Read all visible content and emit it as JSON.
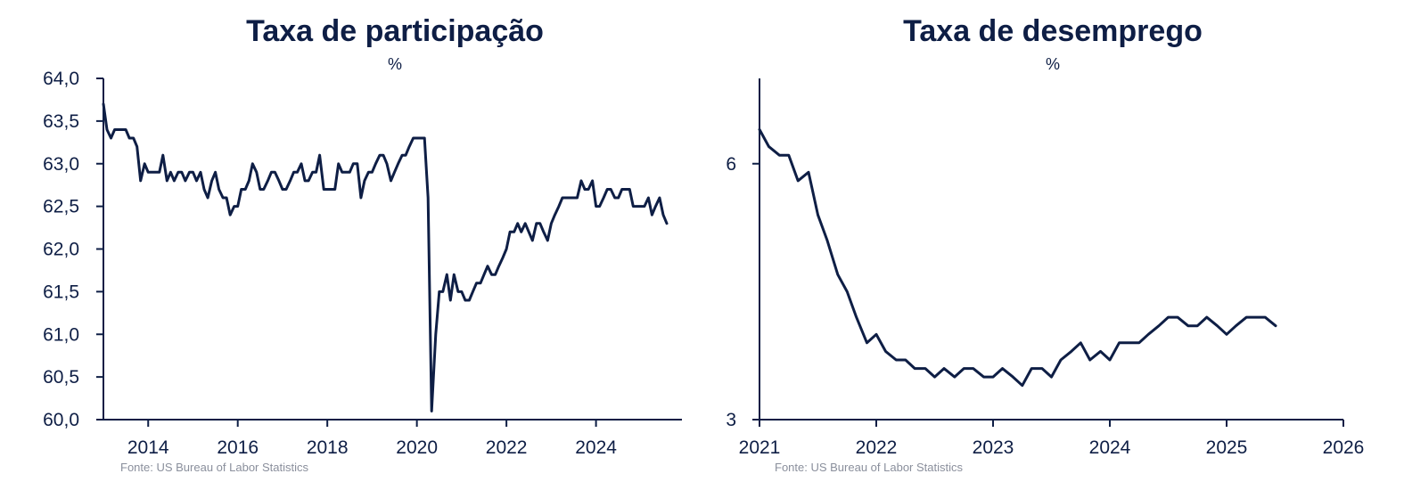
{
  "colors": {
    "navy": "#0e1e45",
    "source": "#8a8f9c"
  },
  "chart_data": [
    {
      "type": "line",
      "title": "Taxa de participação",
      "unit_label": "%",
      "source": "Fonte: US Bureau of Labor Statistics",
      "xlim": [
        2013.0,
        2025.7
      ],
      "ylim": [
        60.0,
        64.0
      ],
      "x_ticks": [
        2014,
        2016,
        2018,
        2020,
        2022,
        2024
      ],
      "y_ticks": [
        {
          "value": 60.0,
          "label": "60,0"
        },
        {
          "value": 60.5,
          "label": "60,5"
        },
        {
          "value": 61.0,
          "label": "61,0"
        },
        {
          "value": 61.5,
          "label": "61,5"
        },
        {
          "value": 62.0,
          "label": "62,0"
        },
        {
          "value": 62.5,
          "label": "62,5"
        },
        {
          "value": 63.0,
          "label": "63,0"
        },
        {
          "value": 63.5,
          "label": "63,5"
        },
        {
          "value": 64.0,
          "label": "64,0"
        }
      ],
      "series": [
        {
          "points": [
            [
              2013.0,
              63.7
            ],
            [
              2013.08,
              63.4
            ],
            [
              2013.17,
              63.3
            ],
            [
              2013.25,
              63.4
            ],
            [
              2013.33,
              63.4
            ],
            [
              2013.42,
              63.4
            ],
            [
              2013.5,
              63.4
            ],
            [
              2013.58,
              63.3
            ],
            [
              2013.67,
              63.3
            ],
            [
              2013.75,
              63.2
            ],
            [
              2013.83,
              62.8
            ],
            [
              2013.92,
              63.0
            ],
            [
              2014.0,
              62.9
            ],
            [
              2014.08,
              62.9
            ],
            [
              2014.17,
              62.9
            ],
            [
              2014.25,
              62.9
            ],
            [
              2014.33,
              63.1
            ],
            [
              2014.42,
              62.8
            ],
            [
              2014.5,
              62.9
            ],
            [
              2014.58,
              62.8
            ],
            [
              2014.67,
              62.9
            ],
            [
              2014.75,
              62.9
            ],
            [
              2014.83,
              62.8
            ],
            [
              2014.92,
              62.9
            ],
            [
              2015.0,
              62.9
            ],
            [
              2015.08,
              62.8
            ],
            [
              2015.17,
              62.9
            ],
            [
              2015.25,
              62.7
            ],
            [
              2015.33,
              62.6
            ],
            [
              2015.42,
              62.8
            ],
            [
              2015.5,
              62.9
            ],
            [
              2015.58,
              62.7
            ],
            [
              2015.67,
              62.6
            ],
            [
              2015.75,
              62.6
            ],
            [
              2015.83,
              62.4
            ],
            [
              2015.92,
              62.5
            ],
            [
              2016.0,
              62.5
            ],
            [
              2016.08,
              62.7
            ],
            [
              2016.17,
              62.7
            ],
            [
              2016.25,
              62.8
            ],
            [
              2016.33,
              63.0
            ],
            [
              2016.42,
              62.9
            ],
            [
              2016.5,
              62.7
            ],
            [
              2016.58,
              62.7
            ],
            [
              2016.67,
              62.8
            ],
            [
              2016.75,
              62.9
            ],
            [
              2016.83,
              62.9
            ],
            [
              2016.92,
              62.8
            ],
            [
              2017.0,
              62.7
            ],
            [
              2017.08,
              62.7
            ],
            [
              2017.17,
              62.8
            ],
            [
              2017.25,
              62.9
            ],
            [
              2017.33,
              62.9
            ],
            [
              2017.42,
              63.0
            ],
            [
              2017.5,
              62.8
            ],
            [
              2017.58,
              62.8
            ],
            [
              2017.67,
              62.9
            ],
            [
              2017.75,
              62.9
            ],
            [
              2017.83,
              63.1
            ],
            [
              2017.92,
              62.7
            ],
            [
              2018.0,
              62.7
            ],
            [
              2018.08,
              62.7
            ],
            [
              2018.17,
              62.7
            ],
            [
              2018.25,
              63.0
            ],
            [
              2018.33,
              62.9
            ],
            [
              2018.42,
              62.9
            ],
            [
              2018.5,
              62.9
            ],
            [
              2018.58,
              63.0
            ],
            [
              2018.67,
              63.0
            ],
            [
              2018.75,
              62.6
            ],
            [
              2018.83,
              62.8
            ],
            [
              2018.92,
              62.9
            ],
            [
              2019.0,
              62.9
            ],
            [
              2019.08,
              63.0
            ],
            [
              2019.17,
              63.1
            ],
            [
              2019.25,
              63.1
            ],
            [
              2019.33,
              63.0
            ],
            [
              2019.42,
              62.8
            ],
            [
              2019.5,
              62.9
            ],
            [
              2019.58,
              63.0
            ],
            [
              2019.67,
              63.1
            ],
            [
              2019.75,
              63.1
            ],
            [
              2019.83,
              63.2
            ],
            [
              2019.92,
              63.3
            ],
            [
              2020.0,
              63.3
            ],
            [
              2020.08,
              63.3
            ],
            [
              2020.17,
              63.3
            ],
            [
              2020.25,
              62.6
            ],
            [
              2020.33,
              60.1
            ],
            [
              2020.42,
              61.0
            ],
            [
              2020.5,
              61.5
            ],
            [
              2020.58,
              61.5
            ],
            [
              2020.67,
              61.7
            ],
            [
              2020.75,
              61.4
            ],
            [
              2020.83,
              61.7
            ],
            [
              2020.92,
              61.5
            ],
            [
              2021.0,
              61.5
            ],
            [
              2021.08,
              61.4
            ],
            [
              2021.17,
              61.4
            ],
            [
              2021.25,
              61.5
            ],
            [
              2021.33,
              61.6
            ],
            [
              2021.42,
              61.6
            ],
            [
              2021.5,
              61.7
            ],
            [
              2021.58,
              61.8
            ],
            [
              2021.67,
              61.7
            ],
            [
              2021.75,
              61.7
            ],
            [
              2021.83,
              61.8
            ],
            [
              2021.92,
              61.9
            ],
            [
              2022.0,
              62.0
            ],
            [
              2022.08,
              62.2
            ],
            [
              2022.17,
              62.2
            ],
            [
              2022.25,
              62.3
            ],
            [
              2022.33,
              62.2
            ],
            [
              2022.42,
              62.3
            ],
            [
              2022.5,
              62.2
            ],
            [
              2022.58,
              62.1
            ],
            [
              2022.67,
              62.3
            ],
            [
              2022.75,
              62.3
            ],
            [
              2022.83,
              62.2
            ],
            [
              2022.92,
              62.1
            ],
            [
              2023.0,
              62.3
            ],
            [
              2023.08,
              62.4
            ],
            [
              2023.17,
              62.5
            ],
            [
              2023.25,
              62.6
            ],
            [
              2023.33,
              62.6
            ],
            [
              2023.42,
              62.6
            ],
            [
              2023.5,
              62.6
            ],
            [
              2023.58,
              62.6
            ],
            [
              2023.67,
              62.8
            ],
            [
              2023.75,
              62.7
            ],
            [
              2023.83,
              62.7
            ],
            [
              2023.92,
              62.8
            ],
            [
              2024.0,
              62.5
            ],
            [
              2024.08,
              62.5
            ],
            [
              2024.17,
              62.6
            ],
            [
              2024.25,
              62.7
            ],
            [
              2024.33,
              62.7
            ],
            [
              2024.42,
              62.6
            ],
            [
              2024.5,
              62.6
            ],
            [
              2024.58,
              62.7
            ],
            [
              2024.67,
              62.7
            ],
            [
              2024.75,
              62.7
            ],
            [
              2024.83,
              62.5
            ],
            [
              2024.92,
              62.5
            ],
            [
              2025.0,
              62.5
            ],
            [
              2025.08,
              62.5
            ],
            [
              2025.17,
              62.6
            ],
            [
              2025.25,
              62.4
            ],
            [
              2025.33,
              62.5
            ],
            [
              2025.42,
              62.6
            ],
            [
              2025.5,
              62.4
            ],
            [
              2025.58,
              62.3
            ]
          ]
        }
      ]
    },
    {
      "type": "line",
      "title": "Taxa de desemprego",
      "unit_label": "%",
      "source": "Fonte: US Bureau of Labor Statistics",
      "xlim": [
        2021.0,
        2026.0
      ],
      "ylim": [
        3.0,
        7.0
      ],
      "x_ticks": [
        2021,
        2022,
        2023,
        2024,
        2025,
        2026
      ],
      "y_ticks": [
        {
          "value": 3,
          "label": "3"
        },
        {
          "value": 6,
          "label": "6"
        }
      ],
      "series": [
        {
          "points": [
            [
              2021.0,
              6.4
            ],
            [
              2021.08,
              6.2
            ],
            [
              2021.17,
              6.1
            ],
            [
              2021.25,
              6.1
            ],
            [
              2021.33,
              5.8
            ],
            [
              2021.42,
              5.9
            ],
            [
              2021.5,
              5.4
            ],
            [
              2021.58,
              5.1
            ],
            [
              2021.67,
              4.7
            ],
            [
              2021.75,
              4.5
            ],
            [
              2021.83,
              4.2
            ],
            [
              2021.92,
              3.9
            ],
            [
              2022.0,
              4.0
            ],
            [
              2022.08,
              3.8
            ],
            [
              2022.17,
              3.7
            ],
            [
              2022.25,
              3.7
            ],
            [
              2022.33,
              3.6
            ],
            [
              2022.42,
              3.6
            ],
            [
              2022.5,
              3.5
            ],
            [
              2022.58,
              3.6
            ],
            [
              2022.67,
              3.5
            ],
            [
              2022.75,
              3.6
            ],
            [
              2022.83,
              3.6
            ],
            [
              2022.92,
              3.5
            ],
            [
              2023.0,
              3.5
            ],
            [
              2023.08,
              3.6
            ],
            [
              2023.17,
              3.5
            ],
            [
              2023.25,
              3.4
            ],
            [
              2023.33,
              3.6
            ],
            [
              2023.42,
              3.6
            ],
            [
              2023.5,
              3.5
            ],
            [
              2023.58,
              3.7
            ],
            [
              2023.67,
              3.8
            ],
            [
              2023.75,
              3.9
            ],
            [
              2023.83,
              3.7
            ],
            [
              2023.92,
              3.8
            ],
            [
              2024.0,
              3.7
            ],
            [
              2024.08,
              3.9
            ],
            [
              2024.17,
              3.9
            ],
            [
              2024.25,
              3.9
            ],
            [
              2024.33,
              4.0
            ],
            [
              2024.42,
              4.1
            ],
            [
              2024.5,
              4.2
            ],
            [
              2024.58,
              4.2
            ],
            [
              2024.67,
              4.1
            ],
            [
              2024.75,
              4.1
            ],
            [
              2024.83,
              4.2
            ],
            [
              2024.92,
              4.1
            ],
            [
              2025.0,
              4.0
            ],
            [
              2025.08,
              4.1
            ],
            [
              2025.17,
              4.2
            ],
            [
              2025.25,
              4.2
            ],
            [
              2025.33,
              4.2
            ],
            [
              2025.42,
              4.1
            ]
          ]
        }
      ]
    }
  ]
}
